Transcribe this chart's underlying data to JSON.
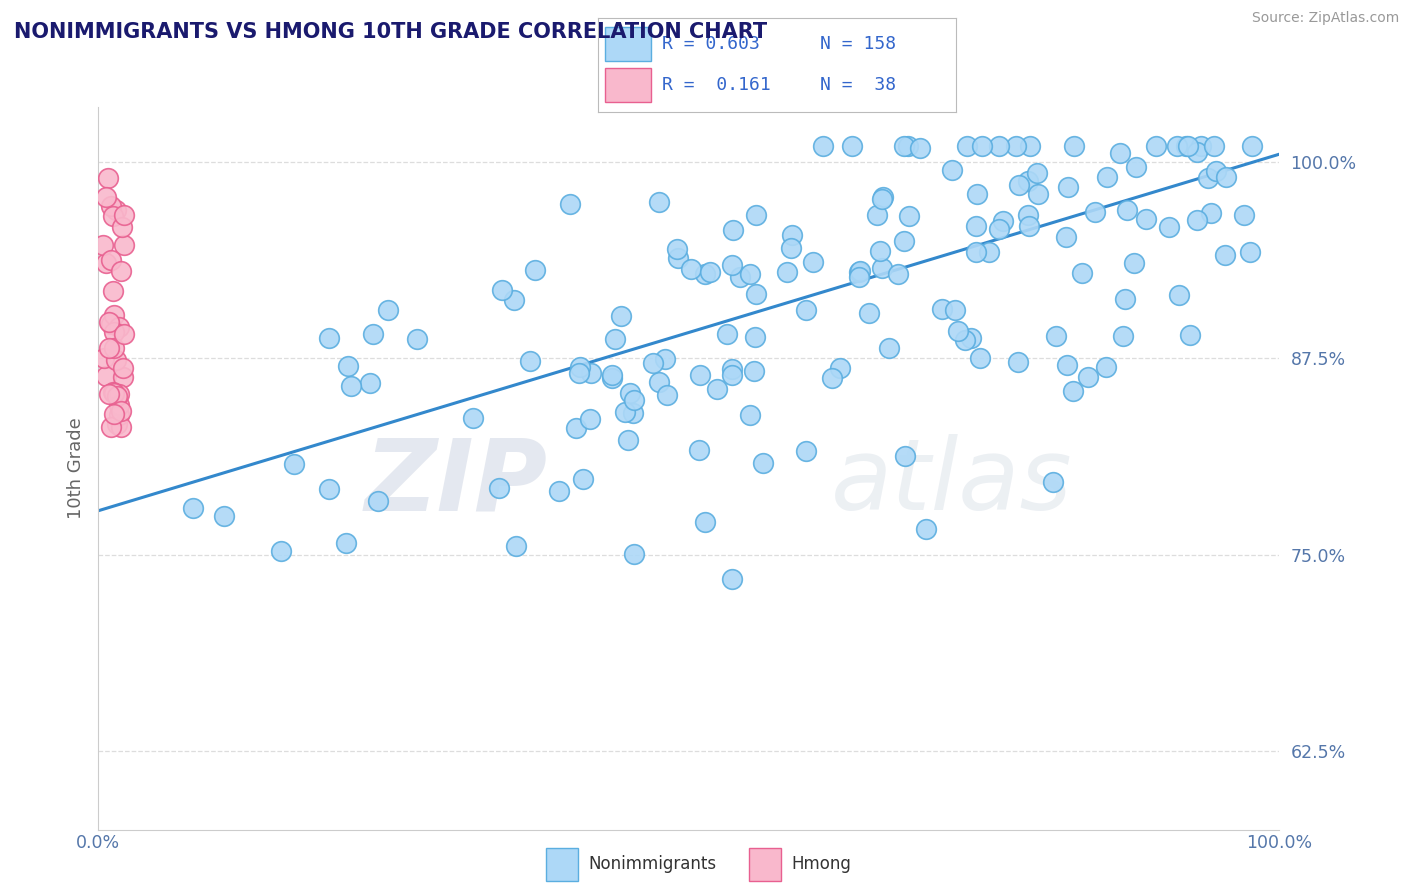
{
  "title": "NONIMMIGRANTS VS HMONG 10TH GRADE CORRELATION CHART",
  "source_text": "Source: ZipAtlas.com",
  "ylabel": "10th Grade",
  "watermark_zip": "ZIP",
  "watermark_atlas": "atlas",
  "blue_R": 0.603,
  "blue_N": 158,
  "pink_R": 0.161,
  "pink_N": 38,
  "xlim": [
    0.0,
    1.0
  ],
  "ylim": [
    0.575,
    1.035
  ],
  "yticks": [
    0.625,
    0.75,
    0.875,
    1.0
  ],
  "ytick_labels": [
    "62.5%",
    "75.0%",
    "87.5%",
    "100.0%"
  ],
  "legend_blue_label": "Nonimmigrants",
  "legend_pink_label": "Hmong",
  "blue_color": "#add8f7",
  "blue_edge_color": "#5baee0",
  "pink_color": "#f9b8cc",
  "pink_edge_color": "#e86090",
  "trend_line_color": "#3388cc",
  "grid_color": "#dddddd",
  "title_color": "#1a1a6e",
  "axis_label_color": "#666666",
  "tick_color": "#5577aa",
  "source_color": "#999999",
  "legend_text_color": "#3366cc",
  "background_color": "#ffffff",
  "trend_y_start": 0.778,
  "trend_y_end": 1.005
}
